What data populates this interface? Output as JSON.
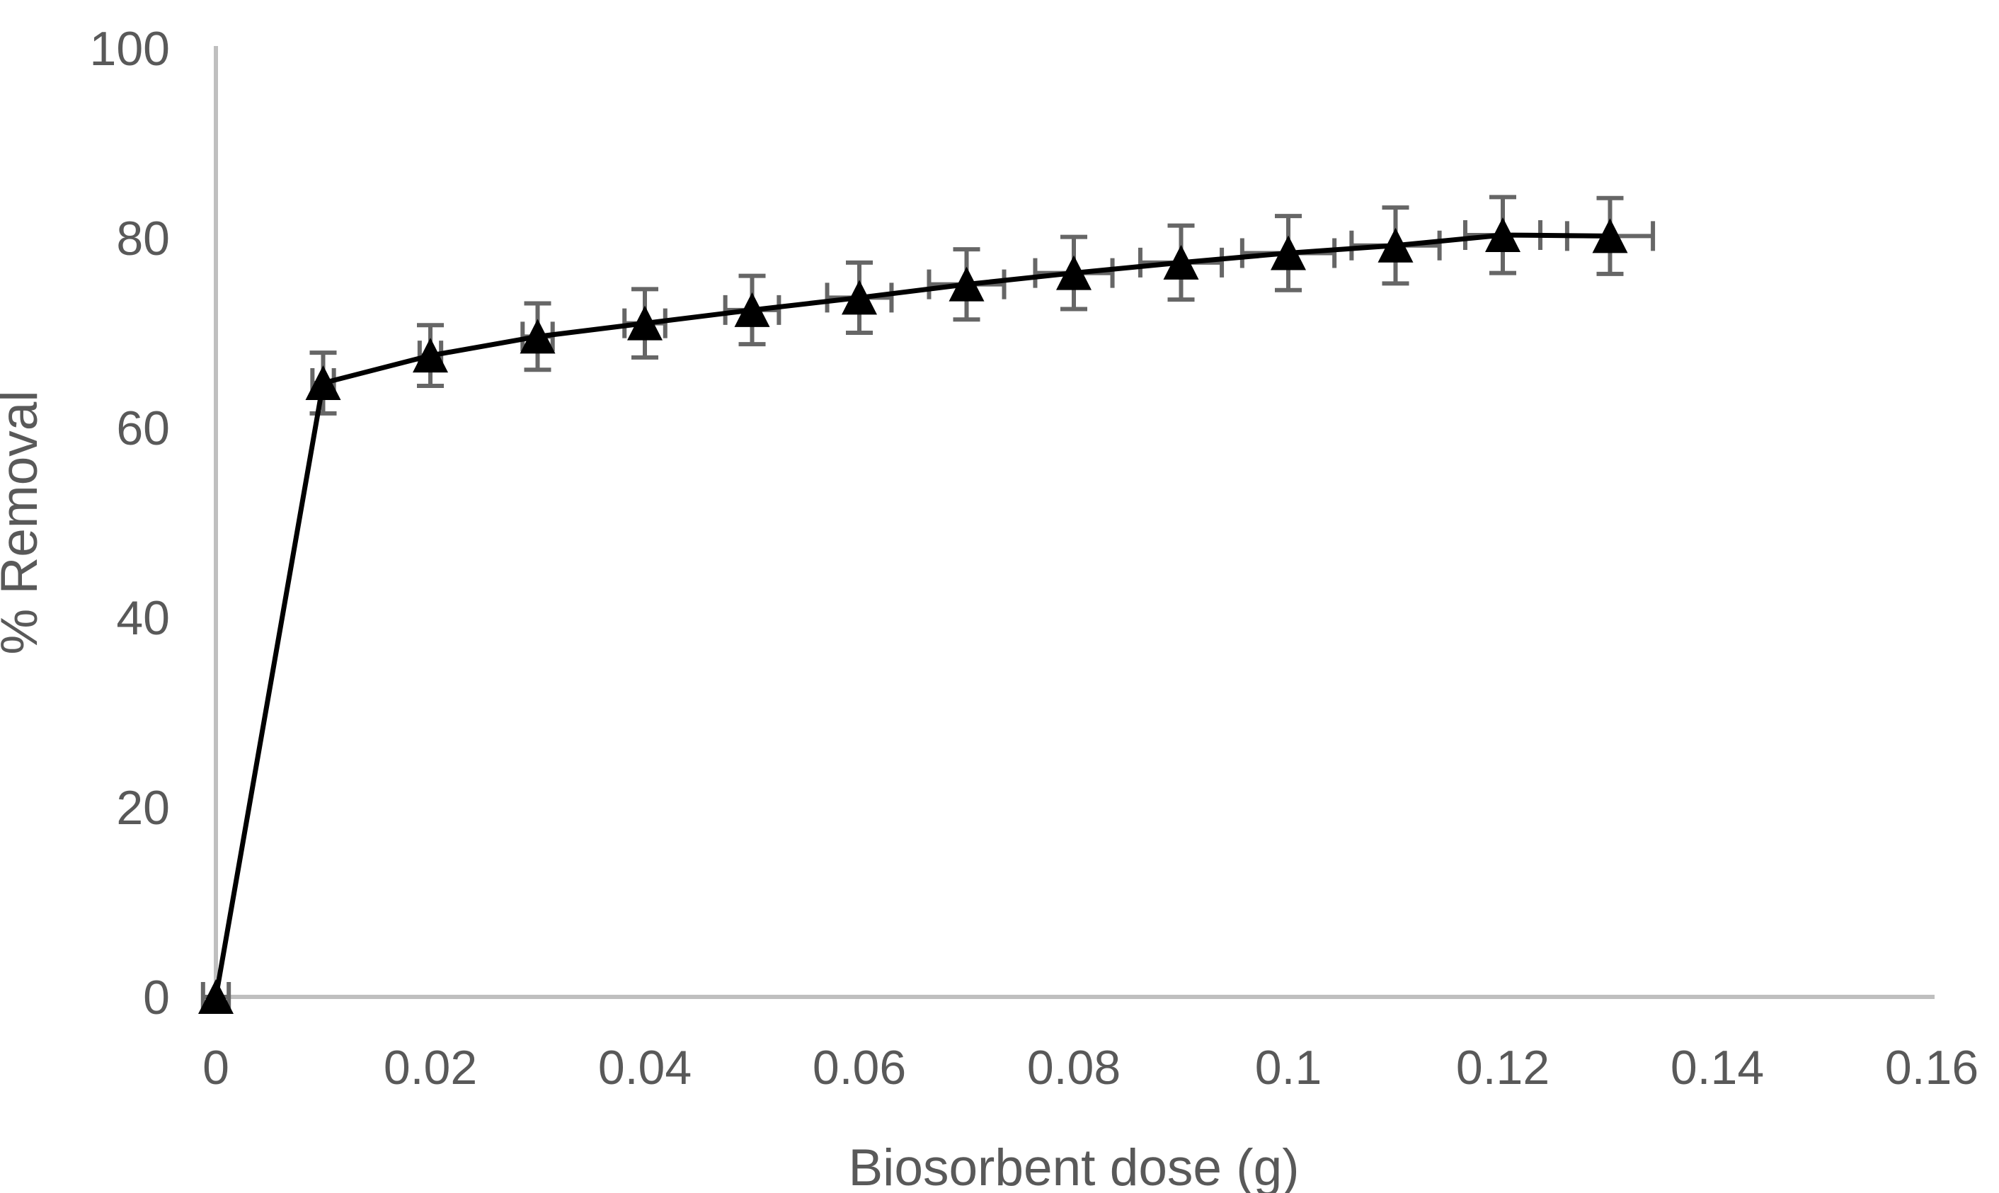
{
  "figure": {
    "background": "#FFFFFF",
    "description": "Scatter-line chart of percent removal versus biosorbent dose with vertical and horizontal error bars, black triangle markers, gray axes, no gridlines, no legend, no title"
  },
  "colors": {
    "series": "#000000",
    "error_bar": "#666666",
    "axis_line": "#BFBFBF",
    "text": "#595959",
    "background": "#FFFFFF"
  },
  "chart_data": {
    "type": "line",
    "title": "",
    "xlabel": "Biosorbent dose (g)",
    "ylabel": "% Removal",
    "xlim": [
      0,
      0.16
    ],
    "ylim": [
      0,
      100
    ],
    "grid": false,
    "legend": false,
    "x_ticks": {
      "values": [
        0,
        0.02,
        0.04,
        0.06,
        0.08,
        0.1,
        0.12,
        0.14,
        0.16
      ],
      "labels": [
        "0",
        "0.02",
        "0.04",
        "0.06",
        "0.08",
        "0.1",
        "0.12",
        "0.14",
        "0.16"
      ]
    },
    "y_ticks": {
      "values": [
        0,
        20,
        40,
        60,
        80,
        100
      ],
      "labels": [
        "0",
        "20",
        "40",
        "60",
        "80",
        "100"
      ]
    },
    "series": [
      {
        "name": "% Removal",
        "marker": "filled-triangle-up",
        "line_style": "solid",
        "x": [
          0,
          0.01,
          0.02,
          0.03,
          0.04,
          0.05,
          0.06,
          0.07,
          0.08,
          0.09,
          0.1,
          0.11,
          0.12,
          0.13
        ],
        "y": [
          0,
          64.7,
          67.6,
          69.6,
          71.0,
          72.4,
          73.7,
          75.1,
          76.3,
          77.4,
          78.4,
          79.2,
          80.3,
          80.2
        ],
        "y_err": [
          0,
          3.2,
          3.2,
          3.5,
          3.6,
          3.6,
          3.7,
          3.7,
          3.8,
          3.9,
          3.9,
          4.0,
          4.0,
          4.0
        ],
        "x_err": [
          0.0012,
          0.001,
          0.001,
          0.0014,
          0.0019,
          0.0025,
          0.003,
          0.0035,
          0.0036,
          0.0038,
          0.0043,
          0.0041,
          0.0035,
          0.004
        ]
      }
    ]
  }
}
